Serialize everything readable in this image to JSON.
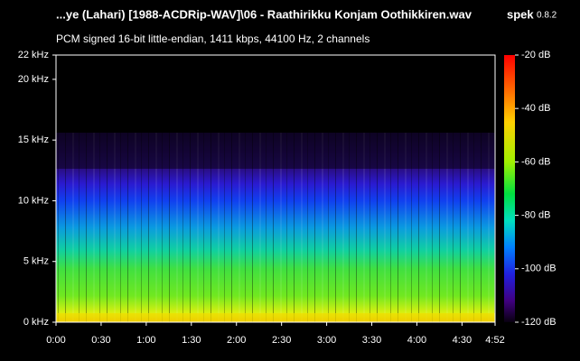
{
  "chart_data": {
    "type": "spectrogram",
    "title": "...ye (Lahari) [1988-ACDRip-WAV]\\06 - Raathirikku Konjam Oothikkiren.wav",
    "app_name": "spek",
    "app_version": "0.8.2",
    "subtitle": "PCM signed 16-bit little-endian, 1411 kbps, 44100 Hz, 2 channels",
    "xlim": [
      0,
      292
    ],
    "xticks": [
      {
        "value": 0,
        "label": "0:00"
      },
      {
        "value": 30,
        "label": "0:30"
      },
      {
        "value": 60,
        "label": "1:00"
      },
      {
        "value": 90,
        "label": "1:30"
      },
      {
        "value": 120,
        "label": "2:00"
      },
      {
        "value": 150,
        "label": "2:30"
      },
      {
        "value": 180,
        "label": "3:00"
      },
      {
        "value": 210,
        "label": "3:30"
      },
      {
        "value": 240,
        "label": "4:00"
      },
      {
        "value": 270,
        "label": "4:30"
      },
      {
        "value": 292,
        "label": "4:52"
      }
    ],
    "ylim": [
      0,
      22
    ],
    "yticks": [
      {
        "value": 0,
        "label": "0 kHz"
      },
      {
        "value": 5,
        "label": "5 kHz"
      },
      {
        "value": 10,
        "label": "10 kHz"
      },
      {
        "value": 15,
        "label": "15 kHz"
      },
      {
        "value": 20,
        "label": "20 kHz"
      },
      {
        "value": 22,
        "label": "22 kHz"
      }
    ],
    "colorbar_lim": [
      -120,
      -20
    ],
    "colorbar_ticks": [
      {
        "value": -20,
        "label": "-20 dB"
      },
      {
        "value": -40,
        "label": "-40 dB"
      },
      {
        "value": -60,
        "label": "-60 dB"
      },
      {
        "value": -80,
        "label": "-80 dB"
      },
      {
        "value": -100,
        "label": "-100 dB"
      },
      {
        "value": -120,
        "label": "-120 dB"
      }
    ]
  }
}
